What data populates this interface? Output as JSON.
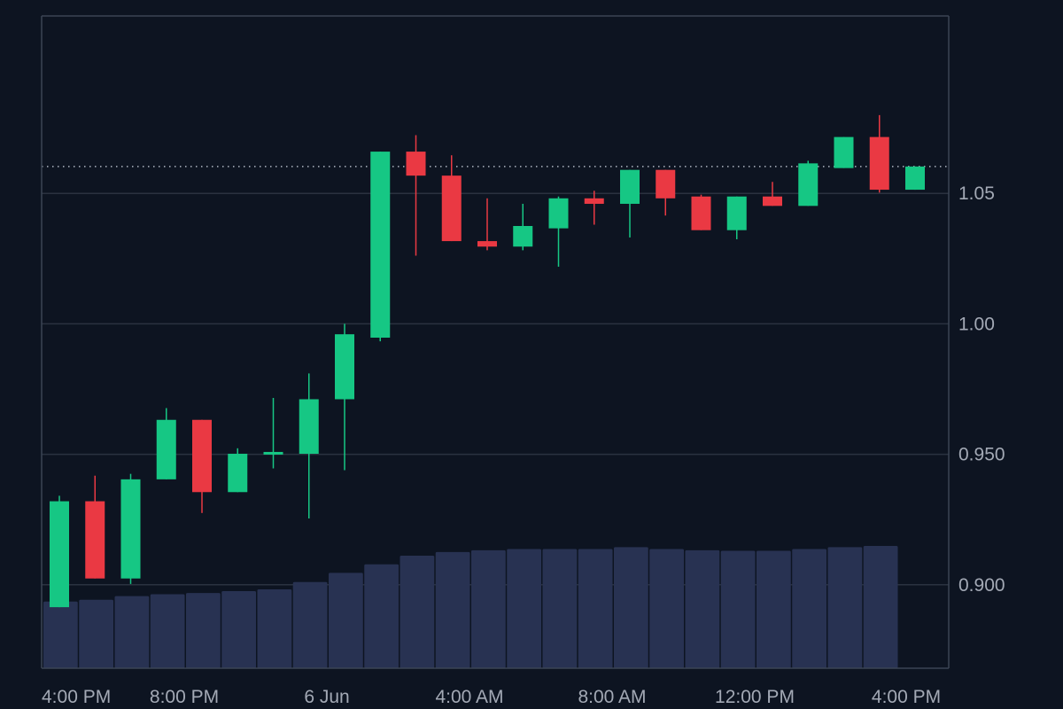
{
  "chart_data": {
    "type": "candlestick",
    "ylim": [
      0.868,
      1.118
    ],
    "grid": true,
    "y_ticks": [
      {
        "value": 0.9,
        "label": "0.900"
      },
      {
        "value": 0.95,
        "label": "0.950"
      },
      {
        "value": 1.0,
        "label": "1.00"
      },
      {
        "value": 1.05,
        "label": "1.05"
      }
    ],
    "x_ticks": [
      {
        "index": 0,
        "label": "4:00 PM"
      },
      {
        "index": 4,
        "label": "8:00 PM"
      },
      {
        "index": 8,
        "label": "6 Jun"
      },
      {
        "index": 12,
        "label": "4:00 AM"
      },
      {
        "index": 16,
        "label": "8:00 AM"
      },
      {
        "index": 20,
        "label": "12:00 PM"
      },
      {
        "index": 24,
        "label": "4:00 PM"
      }
    ],
    "reference_line": 1.0603,
    "candles": [
      {
        "open": 0.8914,
        "high": 0.9341,
        "low": 0.8914,
        "close": 0.932
      },
      {
        "open": 0.932,
        "high": 0.9418,
        "low": 0.9024,
        "close": 0.9024
      },
      {
        "open": 0.9024,
        "high": 0.9425,
        "low": 0.9003,
        "close": 0.9404
      },
      {
        "open": 0.9404,
        "high": 0.9677,
        "low": 0.9404,
        "close": 0.9632
      },
      {
        "open": 0.9632,
        "high": 0.9632,
        "low": 0.9275,
        "close": 0.9355
      },
      {
        "open": 0.9355,
        "high": 0.9523,
        "low": 0.9355,
        "close": 0.9502
      },
      {
        "open": 0.9502,
        "high": 0.9716,
        "low": 0.9446,
        "close": 0.9509
      },
      {
        "open": 0.9502,
        "high": 0.981,
        "low": 0.9254,
        "close": 0.9711
      },
      {
        "open": 0.9711,
        "high": 1.0,
        "low": 0.9439,
        "close": 0.996
      },
      {
        "open": 0.9947,
        "high": 1.066,
        "low": 0.9933,
        "close": 1.066
      },
      {
        "open": 1.066,
        "high": 1.0723,
        "low": 1.0261,
        "close": 1.0568
      },
      {
        "open": 1.0568,
        "high": 1.0646,
        "low": 1.0317,
        "close": 1.0317
      },
      {
        "open": 1.0317,
        "high": 1.0481,
        "low": 1.0282,
        "close": 1.0296
      },
      {
        "open": 1.0296,
        "high": 1.046,
        "low": 1.0282,
        "close": 1.0375
      },
      {
        "open": 1.0366,
        "high": 1.0488,
        "low": 1.0219,
        "close": 1.0481
      },
      {
        "open": 1.0481,
        "high": 1.051,
        "low": 1.038,
        "close": 1.046
      },
      {
        "open": 1.046,
        "high": 1.059,
        "low": 1.0331,
        "close": 1.059
      },
      {
        "open": 1.059,
        "high": 1.059,
        "low": 1.0415,
        "close": 1.0481
      },
      {
        "open": 1.0488,
        "high": 1.0495,
        "low": 1.0359,
        "close": 1.0359
      },
      {
        "open": 1.0359,
        "high": 1.0488,
        "low": 1.0324,
        "close": 1.0488
      },
      {
        "open": 1.0488,
        "high": 1.0544,
        "low": 1.0452,
        "close": 1.0452
      },
      {
        "open": 1.0452,
        "high": 1.0625,
        "low": 1.0452,
        "close": 1.0615
      },
      {
        "open": 1.0597,
        "high": 1.0716,
        "low": 1.0597,
        "close": 1.0716
      },
      {
        "open": 1.0716,
        "high": 1.08,
        "low": 1.0503,
        "close": 1.0514
      },
      {
        "open": 1.0514,
        "high": 1.0603,
        "low": 1.0514,
        "close": 1.0603
      }
    ],
    "volume": {
      "max": 1.0,
      "values": [
        0.545,
        0.56,
        0.59,
        0.605,
        0.615,
        0.63,
        0.645,
        0.705,
        0.78,
        0.85,
        0.92,
        0.95,
        0.965,
        0.975,
        0.975,
        0.975,
        0.99,
        0.975,
        0.965,
        0.96,
        0.96,
        0.975,
        0.99,
        1.0
      ]
    }
  },
  "colors": {
    "background": "#0d1421",
    "up": "#16c784",
    "down": "#ea3943",
    "grid": "#2a3240",
    "axis": "#3b4454",
    "volume": "#283252",
    "reference_line": "#b0b6c2",
    "label": "#a3a9b5"
  }
}
